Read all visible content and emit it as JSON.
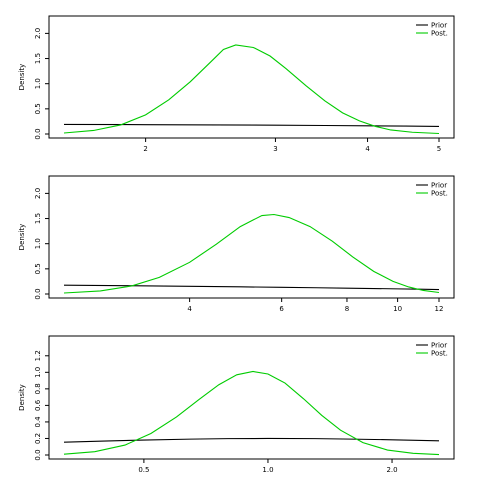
{
  "chart_data": [
    {
      "type": "line",
      "ylabel": "Density",
      "xlim": [
        1.55,
        5.0
      ],
      "ylim": [
        0,
        2.2
      ],
      "x_axis_scale": "log",
      "x_ticks": [
        2,
        3,
        4,
        5
      ],
      "y_ticks": [
        0.0,
        0.5,
        1.0,
        1.5,
        2.0
      ],
      "y_tick_labels": [
        "0.0",
        "0.5",
        "1.0",
        "1.5",
        "2.0"
      ],
      "legend": [
        "Prior",
        "Post."
      ],
      "legend_position": "top-right",
      "series": [
        {
          "name": "Prior",
          "color": "#000000",
          "x": [
            1.55,
            2.0,
            2.5,
            3.0,
            3.5,
            4.0,
            4.5,
            5.0
          ],
          "y": [
            0.19,
            0.186,
            0.181,
            0.175,
            0.169,
            0.163,
            0.157,
            0.151
          ]
        },
        {
          "name": "Post.",
          "color": "#00cc00",
          "x": [
            1.55,
            1.7,
            1.85,
            2.0,
            2.15,
            2.3,
            2.45,
            2.55,
            2.65,
            2.8,
            2.95,
            3.1,
            3.3,
            3.5,
            3.7,
            3.9,
            4.1,
            4.3,
            4.6,
            5.0
          ],
          "y": [
            0.02,
            0.07,
            0.18,
            0.38,
            0.68,
            1.04,
            1.43,
            1.68,
            1.77,
            1.72,
            1.55,
            1.3,
            0.96,
            0.66,
            0.42,
            0.26,
            0.15,
            0.08,
            0.035,
            0.01
          ]
        }
      ]
    },
    {
      "type": "line",
      "ylabel": "Density",
      "xlim": [
        2.3,
        12.0
      ],
      "ylim": [
        0,
        2.2
      ],
      "x_axis_scale": "log",
      "x_ticks": [
        4,
        6,
        8,
        10,
        12
      ],
      "y_ticks": [
        0.0,
        0.5,
        1.0,
        1.5,
        2.0
      ],
      "y_tick_labels": [
        "0.0",
        "0.5",
        "1.0",
        "1.5",
        "2.0"
      ],
      "legend": [
        "Prior",
        "Post."
      ],
      "legend_position": "top-right",
      "series": [
        {
          "name": "Prior",
          "color": "#000000",
          "x": [
            2.3,
            3,
            4,
            5,
            6,
            7,
            8,
            9,
            10,
            11,
            12
          ],
          "y": [
            0.175,
            0.165,
            0.152,
            0.142,
            0.133,
            0.124,
            0.116,
            0.109,
            0.102,
            0.095,
            0.088
          ]
        },
        {
          "name": "Post.",
          "color": "#00cc00",
          "x": [
            2.3,
            2.7,
            3.1,
            3.5,
            4.0,
            4.5,
            5.0,
            5.5,
            5.8,
            6.2,
            6.8,
            7.5,
            8.2,
            9.0,
            9.8,
            10.5,
            11.2,
            12.0
          ],
          "y": [
            0.02,
            0.06,
            0.16,
            0.33,
            0.63,
            0.99,
            1.34,
            1.56,
            1.58,
            1.52,
            1.34,
            1.05,
            0.74,
            0.45,
            0.25,
            0.14,
            0.07,
            0.03
          ]
        }
      ]
    },
    {
      "type": "line",
      "ylabel": "Density",
      "xlim": [
        0.32,
        2.6
      ],
      "ylim": [
        0,
        1.35
      ],
      "x_axis_scale": "log",
      "x_ticks": [
        0.5,
        1.0,
        2.0
      ],
      "x_tick_labels": [
        "0.5",
        "1.0",
        "2.0"
      ],
      "y_ticks": [
        0.0,
        0.2,
        0.4,
        0.6,
        0.8,
        1.0,
        1.2
      ],
      "y_tick_labels": [
        "0.0",
        "0.2",
        "0.4",
        "0.6",
        "0.8",
        "1.0",
        "1.2"
      ],
      "legend": [
        "Prior",
        "Post."
      ],
      "legend_position": "top-right",
      "series": [
        {
          "name": "Prior",
          "color": "#000000",
          "x": [
            0.32,
            0.4,
            0.5,
            0.65,
            0.8,
            1.0,
            1.3,
            1.6,
            2.0,
            2.6
          ],
          "y": [
            0.155,
            0.168,
            0.181,
            0.192,
            0.198,
            0.2,
            0.198,
            0.192,
            0.184,
            0.172
          ]
        },
        {
          "name": "Post.",
          "color": "#00cc00",
          "x": [
            0.32,
            0.38,
            0.45,
            0.52,
            0.6,
            0.68,
            0.76,
            0.84,
            0.92,
            1.0,
            1.1,
            1.22,
            1.35,
            1.5,
            1.7,
            1.95,
            2.25,
            2.6
          ],
          "y": [
            0.01,
            0.04,
            0.12,
            0.26,
            0.46,
            0.67,
            0.85,
            0.97,
            1.01,
            0.98,
            0.87,
            0.68,
            0.48,
            0.3,
            0.15,
            0.06,
            0.02,
            0.005
          ]
        }
      ]
    }
  ]
}
